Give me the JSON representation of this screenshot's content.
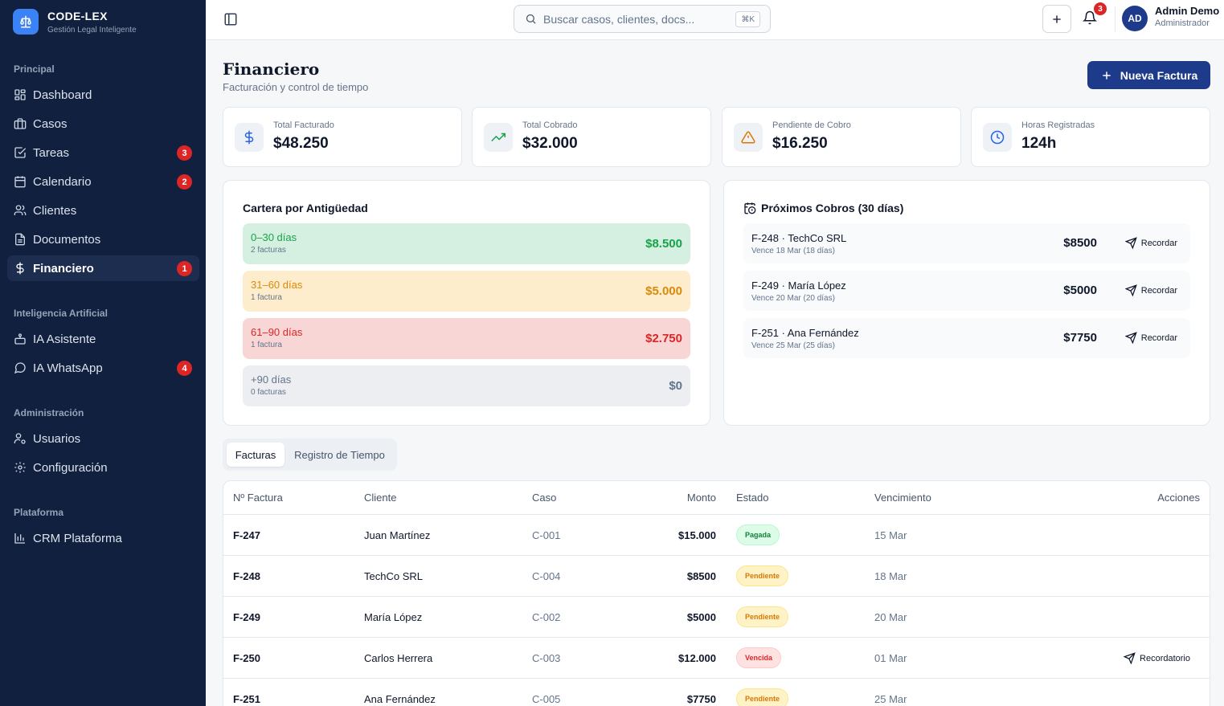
{
  "brand": {
    "name": "CODE-LEX",
    "tagline": "Gestión Legal Inteligente"
  },
  "sidebar": {
    "sections": [
      {
        "label": "Principal",
        "items": [
          {
            "label": "Dashboard",
            "icon": "dashboard-icon"
          },
          {
            "label": "Casos",
            "icon": "briefcase-icon"
          },
          {
            "label": "Tareas",
            "icon": "checkbox-icon",
            "badge": "3"
          },
          {
            "label": "Calendario",
            "icon": "calendar-icon",
            "badge": "2"
          },
          {
            "label": "Clientes",
            "icon": "users-icon"
          },
          {
            "label": "Documentos",
            "icon": "document-icon"
          },
          {
            "label": "Financiero",
            "icon": "dollar-icon",
            "badge": "1",
            "active": true
          }
        ]
      },
      {
        "label": "Inteligencia Artificial",
        "items": [
          {
            "label": "IA Asistente",
            "icon": "bot-icon"
          },
          {
            "label": "IA WhatsApp",
            "icon": "chat-icon",
            "badge": "4"
          }
        ]
      },
      {
        "label": "Administración",
        "items": [
          {
            "label": "Usuarios",
            "icon": "user-cog-icon"
          },
          {
            "label": "Configuración",
            "icon": "gear-icon"
          }
        ]
      },
      {
        "label": "Plataforma",
        "items": [
          {
            "label": "CRM Plataforma",
            "icon": "bar-chart-icon"
          }
        ]
      }
    ]
  },
  "topbar": {
    "search_placeholder": "Buscar casos, clientes, docs...",
    "shortcut": "⌘K",
    "notifications": "3",
    "user": {
      "initials": "AD",
      "name": "Admin Demo",
      "role": "Administrador"
    }
  },
  "page": {
    "title": "Financiero",
    "subtitle": "Facturación y control de tiempo",
    "new_invoice": "Nueva Factura"
  },
  "stats": [
    {
      "label": "Total Facturado",
      "value": "$48.250",
      "icon": "dollar-icon",
      "color": "#2563eb"
    },
    {
      "label": "Total Cobrado",
      "value": "$32.000",
      "icon": "trending-up-icon",
      "color": "#16a34a"
    },
    {
      "label": "Pendiente de Cobro",
      "value": "$16.250",
      "icon": "warning-icon",
      "color": "#d97706"
    },
    {
      "label": "Horas Registradas",
      "value": "124h",
      "icon": "clock-icon",
      "color": "#2563eb"
    }
  ],
  "aging": {
    "title": "Cartera por Antigüedad",
    "buckets": [
      {
        "range": "0–30 días",
        "count": "2 facturas",
        "amount": "$8.500",
        "bg": "#d5f0e0",
        "fg": "#16a34a"
      },
      {
        "range": "31–60 días",
        "count": "1 factura",
        "amount": "$5.000",
        "bg": "#feedcc",
        "fg": "#d98a0b"
      },
      {
        "range": "61–90 días",
        "count": "1 factura",
        "amount": "$2.750",
        "bg": "#f9d6d6",
        "fg": "#dc2626"
      },
      {
        "range": "+90 días",
        "count": "0 facturas",
        "amount": "$0",
        "bg": "#eceef2",
        "fg": "#64748b"
      }
    ]
  },
  "upcoming": {
    "title": "Próximos Cobros (30 días)",
    "items": [
      {
        "title": "F-248 · TechCo SRL",
        "sub": "Vence 18 Mar (18 días)",
        "amount": "$8500",
        "action": "Recordar"
      },
      {
        "title": "F-249 · María López",
        "sub": "Vence 20 Mar (20 días)",
        "amount": "$5000",
        "action": "Recordar"
      },
      {
        "title": "F-251 · Ana Fernández",
        "sub": "Vence 25 Mar (25 días)",
        "amount": "$7750",
        "action": "Recordar"
      }
    ]
  },
  "tabs": [
    {
      "label": "Facturas",
      "active": true
    },
    {
      "label": "Registro de Tiempo"
    }
  ],
  "table": {
    "headers": [
      "Nº Factura",
      "Cliente",
      "Caso",
      "Monto",
      "Estado",
      "Vencimiento",
      "Acciones"
    ],
    "rows": [
      {
        "id": "F-247",
        "client": "Juan Martínez",
        "case": "C-001",
        "amount": "$15.000",
        "status": "Pagada",
        "status_kind": "paid",
        "due": "15 Mar",
        "action": ""
      },
      {
        "id": "F-248",
        "client": "TechCo SRL",
        "case": "C-004",
        "amount": "$8500",
        "status": "Pendiente",
        "status_kind": "pend",
        "due": "18 Mar",
        "action": ""
      },
      {
        "id": "F-249",
        "client": "María López",
        "case": "C-002",
        "amount": "$5000",
        "status": "Pendiente",
        "status_kind": "pend",
        "due": "20 Mar",
        "action": ""
      },
      {
        "id": "F-250",
        "client": "Carlos Herrera",
        "case": "C-003",
        "amount": "$12.000",
        "status": "Vencida",
        "status_kind": "over",
        "due": "01 Mar",
        "action": "Recordatorio"
      },
      {
        "id": "F-251",
        "client": "Ana Fernández",
        "case": "C-005",
        "amount": "$7750",
        "status": "Pendiente",
        "status_kind": "pend",
        "due": "25 Mar",
        "action": ""
      }
    ]
  }
}
